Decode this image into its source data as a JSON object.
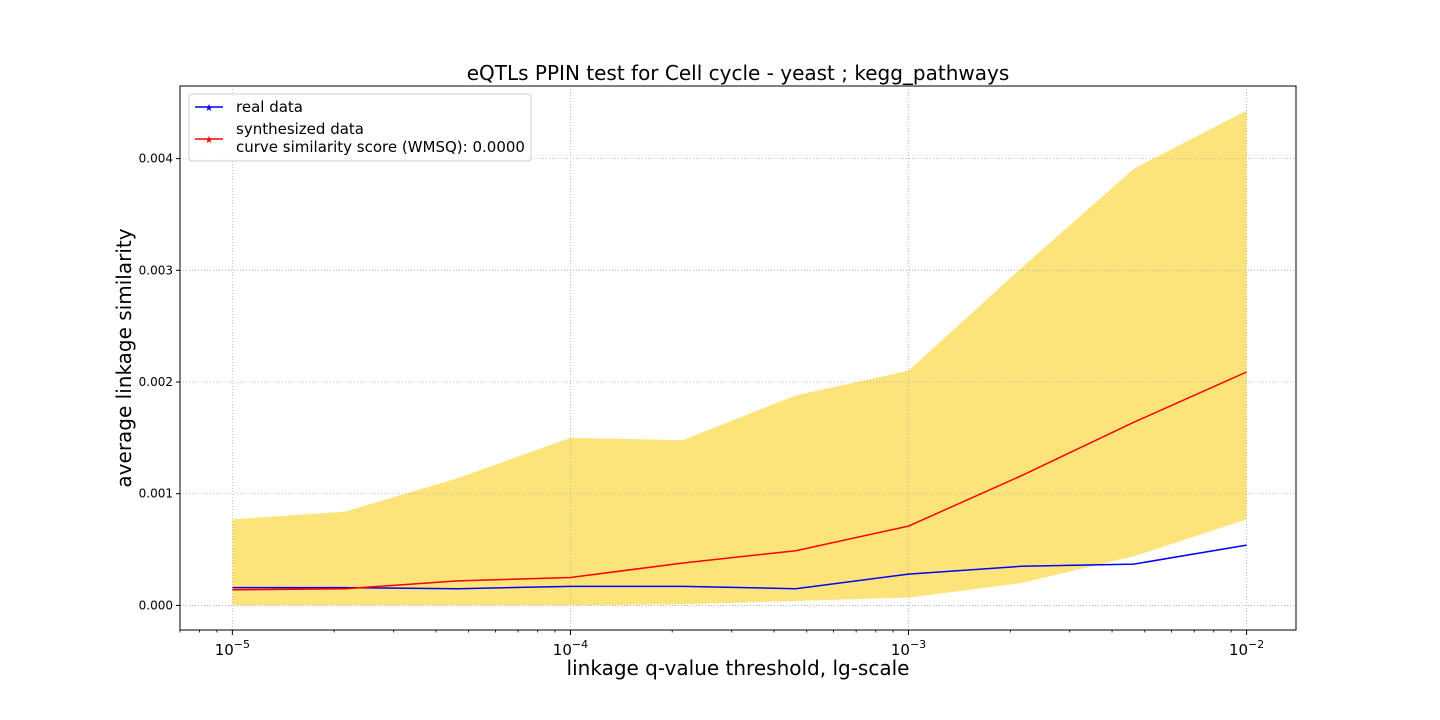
{
  "chart_data": {
    "type": "line",
    "title": "eQTLs PPIN test for Cell cycle - yeast ; kegg_pathways",
    "xlabel": "linkage q-value threshold, lg-scale",
    "ylabel": "average linkage similarity",
    "x_scale": "log10",
    "xlim": [
      7e-06,
      0.014
    ],
    "ylim": [
      -0.00022,
      0.00465
    ],
    "grid": true,
    "legend_position": "top-left",
    "x_ticks": [
      {
        "value": 1e-05,
        "base": "10",
        "exp": "−5"
      },
      {
        "value": 0.0001,
        "base": "10",
        "exp": "−4"
      },
      {
        "value": 0.001,
        "base": "10",
        "exp": "−3"
      },
      {
        "value": 0.01,
        "base": "10",
        "exp": "−2"
      }
    ],
    "y_ticks": [
      {
        "value": 0.0,
        "label": "0.000"
      },
      {
        "value": 0.001,
        "label": "0.001"
      },
      {
        "value": 0.002,
        "label": "0.002"
      },
      {
        "value": 0.003,
        "label": "0.003"
      },
      {
        "value": 0.004,
        "label": "0.004"
      }
    ],
    "x": [
      1e-05,
      2.154e-05,
      4.642e-05,
      0.0001,
      0.0002154,
      0.0004642,
      0.001,
      0.002154,
      0.004642,
      0.01
    ],
    "band": {
      "color": "#fde47a",
      "upper": [
        0.00077,
        0.00084,
        0.00114,
        0.0015,
        0.00148,
        0.00188,
        0.0021,
        0.00302,
        0.00391,
        0.00443
      ],
      "lower": [
        0.0,
        0.0,
        0.0,
        0.0,
        1e-05,
        4e-05,
        7e-05,
        0.0002,
        0.00044,
        0.00077
      ]
    },
    "series": [
      {
        "name": "real data",
        "color": "#0000ff",
        "values": [
          0.00016,
          0.00016,
          0.00015,
          0.00017,
          0.00017,
          0.00015,
          0.00028,
          0.00035,
          0.00037,
          0.00054
        ]
      },
      {
        "name": "synthesized data",
        "name_line2": "curve similarity score (WMSQ): 0.0000",
        "color": "#ff0000",
        "values": [
          0.00014,
          0.00015,
          0.00022,
          0.00025,
          0.00038,
          0.00049,
          0.00071,
          0.00116,
          0.00164,
          0.00209
        ]
      }
    ]
  }
}
